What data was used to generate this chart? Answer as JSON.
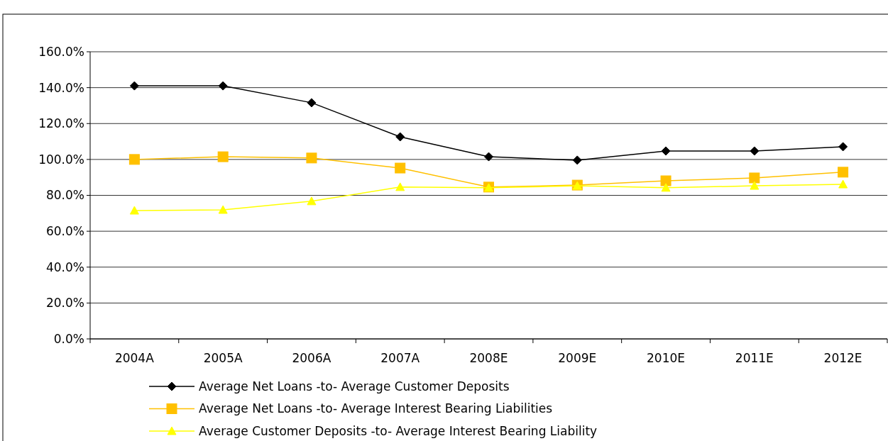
{
  "chart_data": {
    "type": "line",
    "categories": [
      "2004A",
      "2005A",
      "2006A",
      "2007A",
      "2008E",
      "2009E",
      "2010E",
      "2011E",
      "2012E"
    ],
    "ylim": [
      0,
      160
    ],
    "yticks": [
      {
        "value": 0,
        "label": "0.0%"
      },
      {
        "value": 20,
        "label": "20.0%"
      },
      {
        "value": 40,
        "label": "40.0%"
      },
      {
        "value": 60,
        "label": "60.0%"
      },
      {
        "value": 80,
        "label": "80.0%"
      },
      {
        "value": 100,
        "label": "100.0%"
      },
      {
        "value": 120,
        "label": "120.0%"
      },
      {
        "value": 140,
        "label": "140.0%"
      },
      {
        "value": 160,
        "label": "160.0%"
      }
    ],
    "grid": "y",
    "legend": "bottom",
    "series": [
      {
        "name": "Average Net Loans -to- Average Customer Deposits",
        "color": "#000000",
        "marker": "diamond",
        "values": [
          141,
          141,
          131.6,
          112.6,
          101.5,
          99.6,
          104.7,
          104.7,
          107.1
        ]
      },
      {
        "name": "Average Net Loans -to- Average Interest Bearing Liabilities",
        "color": "#ffc000",
        "marker": "square",
        "values": [
          100,
          101.5,
          100.8,
          95.2,
          84.6,
          85.7,
          88.1,
          89.7,
          92.9
        ]
      },
      {
        "name": "Average Customer Deposits -to- Average Interest Bearing Liability",
        "color": "#ffff00",
        "marker": "triangle",
        "values": [
          71.5,
          71.9,
          76.7,
          84.6,
          84.2,
          85.3,
          84.2,
          85.3,
          86.1
        ]
      }
    ]
  }
}
